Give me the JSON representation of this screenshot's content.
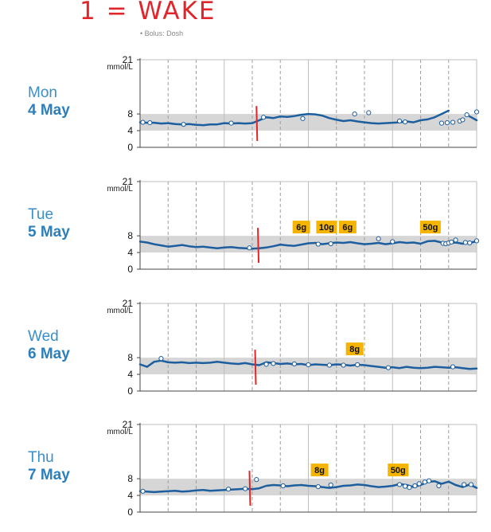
{
  "annotation": "1 = WAKE",
  "legend_stub": "• Bolus: Dosh",
  "colors": {
    "trace": "#1c5e9e",
    "target_band": "#d6d6d6",
    "wake_marker": "#e0262a",
    "carb_badge": "#f4b400",
    "day_name": "#3a8fc8",
    "day_date": "#2b7fbd",
    "grid_solid": "#bdbdbd",
    "grid_dashed": "#9e9e9e"
  },
  "chart_data": [
    {
      "type": "line",
      "day_name": "Mon",
      "day_date": "4 May",
      "unit": "mmol/L",
      "x_unit": "hours",
      "xlim": [
        0,
        24
      ],
      "ylim": [
        0,
        21
      ],
      "y_ticks": [
        "21",
        "8",
        "4",
        "0"
      ],
      "target_range": [
        4,
        8
      ],
      "grid": true,
      "series": [
        {
          "x": [
            0,
            0.5,
            1,
            1.5,
            2,
            2.5,
            3,
            3.5,
            4,
            4.5,
            5,
            5.5,
            6,
            6.5,
            7,
            7.5,
            8,
            8.5,
            9,
            9.5,
            10,
            10.5,
            11,
            11.5,
            12,
            12.5,
            13,
            13.5,
            14,
            14.5,
            15,
            15.5,
            16,
            16.5,
            17,
            17.5,
            18,
            18.5,
            19,
            19.5,
            20,
            20.5,
            21,
            21.5,
            22,
            22.5,
            23,
            23.5,
            24
          ],
          "y": [
            6.0,
            5.9,
            5.9,
            5.7,
            5.8,
            5.6,
            5.5,
            5.6,
            5.4,
            5.3,
            5.5,
            5.5,
            5.8,
            5.7,
            5.8,
            5.7,
            5.8,
            6.5,
            7.2,
            7.0,
            7.4,
            7.3,
            7.5,
            7.8,
            8.0,
            7.9,
            7.6,
            7.0,
            6.6,
            6.3,
            6.5,
            6.2,
            6.0,
            5.8,
            5.7,
            5.8,
            5.9,
            6.0,
            6.2,
            6.0,
            6.5,
            6.7,
            7.2,
            8.0,
            8.8,
            null,
            null,
            7.4,
            6.5
          ]
        }
      ],
      "points": {
        "x": [
          0.2,
          0.7,
          3.1,
          6.5,
          8.8,
          11.6,
          15.3,
          16.3,
          18.5,
          18.9,
          21.5,
          21.9,
          22.3,
          22.8,
          23.0,
          23.3,
          24.3
        ],
        "y": [
          6.0,
          5.9,
          5.5,
          5.8,
          7.2,
          6.9,
          8.0,
          8.3,
          6.3,
          6.1,
          5.8,
          5.9,
          6.0,
          6.3,
          6.6,
          7.8,
          8.5
        ]
      },
      "wake_x": 8.3,
      "carbs": []
    },
    {
      "type": "line",
      "day_name": "Tue",
      "day_date": "5 May",
      "unit": "mmol/L",
      "x_unit": "hours",
      "xlim": [
        0,
        24
      ],
      "ylim": [
        0,
        21
      ],
      "y_ticks": [
        "21",
        "8",
        "4",
        "0"
      ],
      "target_range": [
        4,
        8
      ],
      "grid": true,
      "series": [
        {
          "x": [
            0,
            0.5,
            1,
            1.5,
            2,
            2.5,
            3,
            3.5,
            4,
            4.5,
            5,
            5.5,
            6,
            6.5,
            7,
            7.5,
            8,
            8.5,
            9,
            9.5,
            10,
            10.5,
            11,
            11.5,
            12,
            12.5,
            13,
            13.5,
            14,
            14.5,
            15,
            15.5,
            16,
            16.5,
            17,
            17.5,
            18,
            18.5,
            19,
            19.5,
            20,
            20.5,
            21,
            21.5,
            22,
            22.5,
            23,
            23.5,
            24
          ],
          "y": [
            6.6,
            6.4,
            6.0,
            5.7,
            5.4,
            5.6,
            5.8,
            5.5,
            5.3,
            5.4,
            5.2,
            5.0,
            5.2,
            5.3,
            5.1,
            5.0,
            4.9,
            5.0,
            5.2,
            5.5,
            5.9,
            5.7,
            5.6,
            5.9,
            6.2,
            6.3,
            6.0,
            6.2,
            6.4,
            6.3,
            6.5,
            6.2,
            6.0,
            6.1,
            6.3,
            6.0,
            6.2,
            6.5,
            6.3,
            6.4,
            6.1,
            6.7,
            6.8,
            6.4,
            6.2,
            6.4,
            6.1,
            6.3,
            6.7
          ]
        }
      ],
      "points": {
        "x": [
          7.8,
          12.7,
          13.6,
          17.0,
          18.0,
          21.6,
          21.8,
          22.0,
          22.2,
          22.5,
          23.2,
          23.5,
          24.2
        ],
        "y": [
          5.1,
          6.0,
          6.1,
          7.3,
          6.6,
          6.2,
          6.1,
          6.3,
          6.5,
          7.0,
          6.4,
          6.3,
          6.8
        ]
      },
      "wake_x": 8.4,
      "carbs": [
        {
          "x": 11.5,
          "label": "6g"
        },
        {
          "x": 13.3,
          "label": "10g"
        },
        {
          "x": 14.8,
          "label": "6g"
        },
        {
          "x": 20.7,
          "label": "50g"
        }
      ]
    },
    {
      "type": "line",
      "day_name": "Wed",
      "day_date": "6 May",
      "unit": "mmol/L",
      "x_unit": "hours",
      "xlim": [
        0,
        24
      ],
      "ylim": [
        0,
        21
      ],
      "y_ticks": [
        "21",
        "8",
        "4",
        "0"
      ],
      "target_range": [
        4,
        8
      ],
      "grid": true,
      "series": [
        {
          "x": [
            0,
            0.5,
            1,
            1.5,
            2,
            2.5,
            3,
            3.5,
            4,
            4.5,
            5,
            5.5,
            6,
            6.5,
            7,
            7.5,
            8,
            8.5,
            9,
            9.5,
            10,
            10.5,
            11,
            11.5,
            12,
            12.5,
            13,
            13.5,
            14,
            14.5,
            15,
            15.5,
            16,
            16.5,
            17,
            17.5,
            18,
            18.5,
            19,
            19.5,
            20,
            20.5,
            21,
            21.5,
            22,
            22.5,
            23,
            23.5,
            24
          ],
          "y": [
            6.4,
            5.8,
            7.0,
            7.3,
            6.9,
            6.8,
            6.9,
            6.7,
            6.8,
            6.7,
            6.8,
            7.0,
            6.8,
            6.6,
            6.5,
            6.7,
            6.4,
            6.2,
            6.9,
            6.7,
            6.5,
            6.6,
            6.4,
            6.5,
            6.2,
            6.4,
            6.3,
            6.2,
            6.4,
            6.3,
            6.1,
            6.3,
            6.2,
            6.0,
            5.8,
            5.6,
            5.7,
            5.5,
            5.8,
            5.6,
            5.5,
            5.6,
            5.8,
            5.7,
            5.6,
            5.7,
            5.5,
            5.3,
            5.4
          ]
        }
      ],
      "points": {
        "x": [
          1.5,
          9.0,
          9.5,
          11.0,
          12.0,
          13.5,
          14.5,
          15.5,
          17.7,
          22.3
        ],
        "y": [
          7.8,
          6.4,
          6.6,
          6.5,
          6.3,
          6.2,
          6.2,
          6.3,
          5.6,
          5.8
        ]
      },
      "wake_x": 8.2,
      "carbs": [
        {
          "x": 15.3,
          "label": "8g"
        }
      ]
    },
    {
      "type": "line",
      "day_name": "Thu",
      "day_date": "7 May",
      "unit": "mmol/L",
      "x_unit": "hours",
      "xlim": [
        0,
        24
      ],
      "ylim": [
        0,
        21
      ],
      "y_ticks": [
        "21",
        "8",
        "4",
        "0"
      ],
      "target_range": [
        4,
        8
      ],
      "grid": true,
      "series": [
        {
          "x": [
            0,
            0.5,
            1,
            1.5,
            2,
            2.5,
            3,
            3.5,
            4,
            4.5,
            5,
            5.5,
            6,
            6.5,
            7,
            7.5,
            8,
            8.5,
            9,
            9.5,
            10,
            10.5,
            11,
            11.5,
            12,
            12.5,
            13,
            13.5,
            14,
            14.5,
            15,
            15.5,
            16,
            16.5,
            17,
            17.5,
            18,
            18.5,
            19,
            19.5,
            20,
            20.5,
            21,
            21.5,
            22,
            22.5,
            23,
            23.5,
            24
          ],
          "y": [
            5.0,
            4.9,
            4.8,
            4.9,
            5.0,
            5.1,
            4.9,
            5.0,
            5.2,
            5.3,
            5.1,
            5.2,
            5.3,
            5.4,
            5.5,
            5.6,
            5.5,
            5.7,
            6.3,
            6.5,
            6.4,
            6.2,
            6.4,
            6.5,
            6.3,
            6.2,
            6.0,
            5.8,
            6.0,
            6.3,
            6.4,
            6.6,
            6.5,
            6.2,
            6.0,
            6.1,
            6.3,
            6.7,
            6.5,
            6.0,
            6.5,
            7.2,
            7.4,
            6.8,
            7.3,
            6.5,
            6.0,
            6.6,
            5.8
          ]
        }
      ],
      "points": {
        "x": [
          0.2,
          6.3,
          7.5,
          8.3,
          10.2,
          12.7,
          13.6,
          18.5,
          18.9,
          19.2,
          19.6,
          19.9,
          20.3,
          20.6,
          21.3,
          23.1,
          23.6
        ],
        "y": [
          5.0,
          5.5,
          5.6,
          7.8,
          6.3,
          6.1,
          6.5,
          6.6,
          6.2,
          5.9,
          6.3,
          6.8,
          7.2,
          7.5,
          6.3,
          6.6,
          6.6
        ]
      },
      "wake_x": 7.8,
      "carbs": [
        {
          "x": 12.8,
          "label": "8g"
        },
        {
          "x": 18.4,
          "label": "50g"
        }
      ]
    }
  ]
}
